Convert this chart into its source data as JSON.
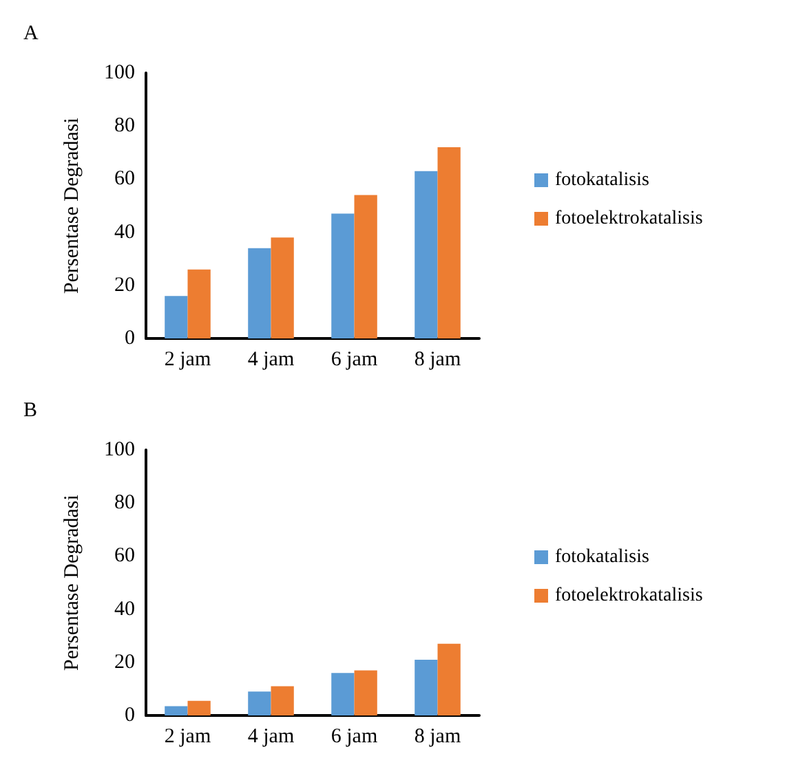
{
  "chart_data": [
    {
      "type": "bar",
      "title": "A",
      "ylabel": "Persentase Degradasi",
      "categories": [
        "2 jam",
        "4 jam",
        "6 jam",
        "8 jam"
      ],
      "ylim": [
        0,
        100
      ],
      "yticks": [
        0,
        20,
        40,
        60,
        80,
        100
      ],
      "grid": false,
      "legend": "right",
      "series": [
        {
          "name": "fotokatalisis",
          "color": "#5b9bd5",
          "values": [
            16,
            34,
            47,
            63
          ]
        },
        {
          "name": "fotoelektrokatalisis",
          "color": "#ed7d31",
          "values": [
            26,
            38,
            54,
            72
          ]
        }
      ]
    },
    {
      "type": "bar",
      "title": "B",
      "ylabel": "Persentase Degradasi",
      "categories": [
        "2 jam",
        "4 jam",
        "6 jam",
        "8 jam"
      ],
      "ylim": [
        0,
        100
      ],
      "yticks": [
        0,
        20,
        40,
        60,
        80,
        100
      ],
      "grid": false,
      "legend": "right",
      "series": [
        {
          "name": "fotokatalisis",
          "color": "#5b9bd5",
          "values": [
            3.5,
            9,
            16,
            21
          ]
        },
        {
          "name": "fotoelektrokatalisis",
          "color": "#ed7d31",
          "values": [
            5.5,
            11,
            17,
            27
          ]
        }
      ]
    }
  ]
}
